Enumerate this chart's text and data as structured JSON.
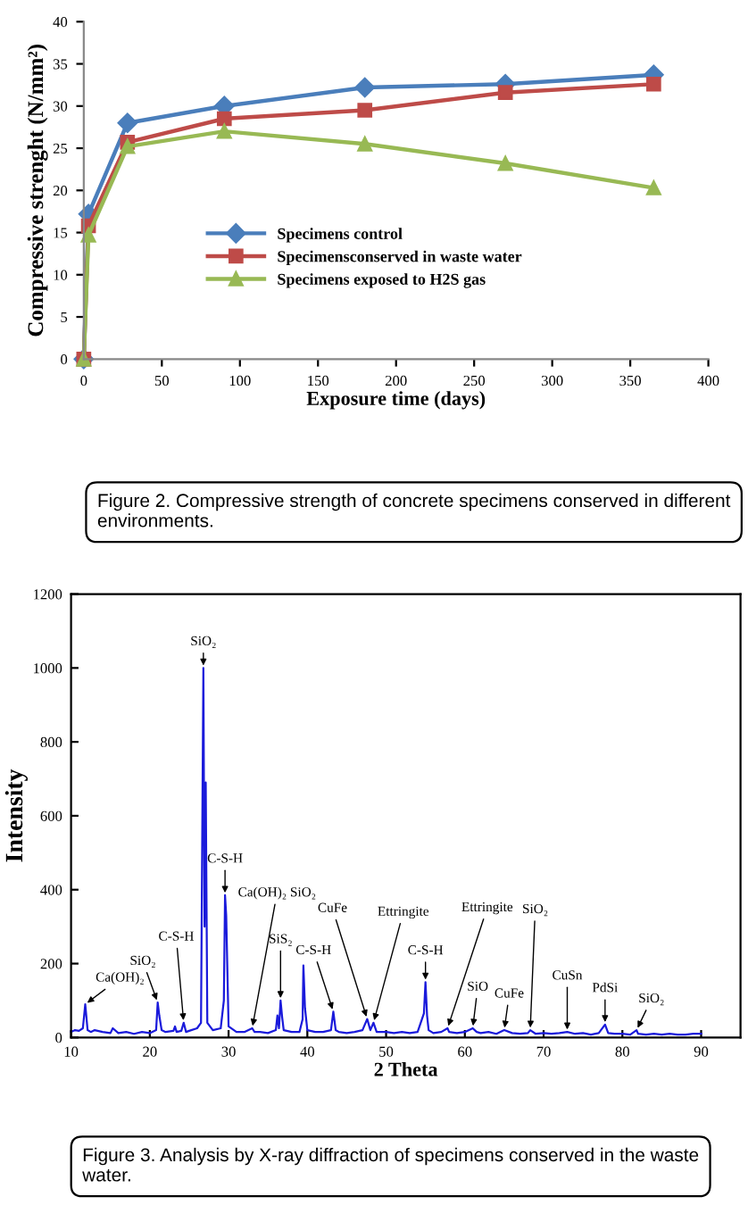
{
  "chart_data": [
    {
      "type": "line",
      "xlabel": "Exposure time (days)",
      "ylabel": "Compressive strenght (N/mm²)",
      "x": [
        0,
        3,
        28,
        90,
        180,
        270,
        365
      ],
      "series": [
        {
          "name": "Specimens control",
          "color": "#4a7ebb",
          "marker": "diamond",
          "values": [
            0,
            17.2,
            28,
            30,
            32.2,
            32.6,
            33.7
          ]
        },
        {
          "name": "Specimensconserved in waste water",
          "color": "#be4b48",
          "marker": "square",
          "values": [
            0,
            15.8,
            25.7,
            28.5,
            29.5,
            31.6,
            32.6
          ]
        },
        {
          "name": "Specimens exposed to H2S gas",
          "color": "#98b954",
          "marker": "triangle",
          "values": [
            0,
            14.7,
            25.2,
            27,
            25.5,
            23.2,
            20.3
          ]
        }
      ],
      "xlim": [
        0,
        400
      ],
      "xticks": [
        0,
        50,
        100,
        150,
        200,
        250,
        300,
        350,
        400
      ],
      "ylim": [
        0,
        40
      ],
      "yticks": [
        0,
        5,
        10,
        15,
        20,
        25,
        30,
        35,
        40
      ],
      "grid": false,
      "legend": "center",
      "line_style": "solid",
      "annotations": [
        "Figure 2. Compressive strength of concrete specimens conserved in different environments."
      ]
    },
    {
      "type": "line",
      "xlabel": "2 Theta",
      "ylabel": "Intensity",
      "marker": "none",
      "grid": false,
      "legend": false,
      "x": [
        10,
        10.5,
        11,
        11.5,
        11.8,
        12.1,
        12.5,
        13,
        14,
        15,
        15.3,
        16,
        17,
        18,
        19,
        20,
        20.8,
        21,
        21.2,
        21.5,
        22,
        23,
        23.2,
        23.4,
        24,
        24.3,
        24.6,
        25,
        26,
        26.5,
        26.8,
        26.95,
        27.1,
        27.3,
        28,
        29,
        29.4,
        29.55,
        29.7,
        30,
        31,
        32,
        33,
        33.3,
        34,
        35,
        36,
        36.2,
        36.4,
        36.6,
        36.8,
        37,
        38,
        39,
        39.4,
        39.5,
        39.7,
        40,
        41,
        42,
        43,
        43.3,
        43.6,
        44,
        45,
        46,
        47,
        47.6,
        48,
        48.4,
        48.8,
        50,
        51,
        52,
        53,
        54,
        54.8,
        55,
        55.2,
        55.4,
        56,
        57,
        57.8,
        58,
        59,
        60,
        61,
        61.5,
        62,
        63,
        64,
        65,
        66,
        67,
        68,
        68.3,
        69,
        70,
        71,
        72,
        73,
        74,
        75,
        76,
        77,
        77.8,
        78.2,
        79,
        80,
        81,
        81.8,
        82,
        83,
        84,
        85,
        86,
        87,
        88,
        89,
        90
      ],
      "series": [
        {
          "color": "#1a1adb",
          "values": [
            15,
            20,
            18,
            25,
            90,
            20,
            15,
            20,
            15,
            12,
            25,
            12,
            15,
            10,
            15,
            12,
            20,
            95,
            60,
            20,
            15,
            18,
            30,
            15,
            18,
            40,
            15,
            18,
            25,
            40,
            1000,
            300,
            690,
            40,
            20,
            25,
            100,
            385,
            330,
            30,
            15,
            15,
            25,
            15,
            15,
            12,
            20,
            60,
            25,
            100,
            55,
            20,
            15,
            15,
            50,
            195,
            80,
            20,
            15,
            15,
            20,
            70,
            20,
            15,
            12,
            15,
            20,
            50,
            20,
            40,
            15,
            15,
            12,
            15,
            12,
            15,
            65,
            150,
            60,
            20,
            12,
            15,
            25,
            15,
            12,
            15,
            25,
            15,
            12,
            15,
            10,
            20,
            12,
            10,
            12,
            20,
            10,
            12,
            10,
            12,
            15,
            10,
            12,
            8,
            12,
            35,
            12,
            10,
            10,
            8,
            20,
            10,
            8,
            10,
            8,
            10,
            8,
            8,
            10,
            10
          ]
        }
      ],
      "xlim": [
        10,
        95
      ],
      "xticks": [
        10,
        20,
        30,
        40,
        50,
        60,
        70,
        80,
        90
      ],
      "ylim": [
        0,
        1200
      ],
      "yticks": [
        0,
        200,
        400,
        600,
        800,
        1000,
        1200
      ],
      "annotations": [
        {
          "text": "Ca(OH)₂",
          "x": 11.8,
          "y": 90
        },
        {
          "text": "SiO₂",
          "x": 21,
          "y": 95
        },
        {
          "text": "C-S-H",
          "x": 24.3,
          "y": 40
        },
        {
          "text": "SiO₂",
          "x": 26.8,
          "y": 1000
        },
        {
          "text": "C-S-H",
          "x": 29.55,
          "y": 385
        },
        {
          "text": "Ca(OH)₂ SiO₂",
          "x": 33,
          "y": 25
        },
        {
          "text": "SiS₂",
          "x": 36.6,
          "y": 100
        },
        {
          "text": "C-S-H",
          "x": 43.3,
          "y": 70
        },
        {
          "text": "CuFe",
          "x": 47.6,
          "y": 50
        },
        {
          "text": "Ettringite",
          "x": 48.4,
          "y": 40
        },
        {
          "text": "C-S-H",
          "x": 55,
          "y": 150
        },
        {
          "text": "Ettringite",
          "x": 57.8,
          "y": 25
        },
        {
          "text": "SiO",
          "x": 61,
          "y": 25
        },
        {
          "text": "CuFe",
          "x": 65,
          "y": 20
        },
        {
          "text": "SiO₂",
          "x": 68.3,
          "y": 20
        },
        {
          "text": "CuSn",
          "x": 73,
          "y": 15
        },
        {
          "text": "PdSi",
          "x": 77.8,
          "y": 35
        },
        {
          "text": "SiO₂",
          "x": 81.8,
          "y": 20
        },
        "Figure 3. Analysis by X-ray diffraction of specimens conserved in the waste water."
      ]
    }
  ]
}
